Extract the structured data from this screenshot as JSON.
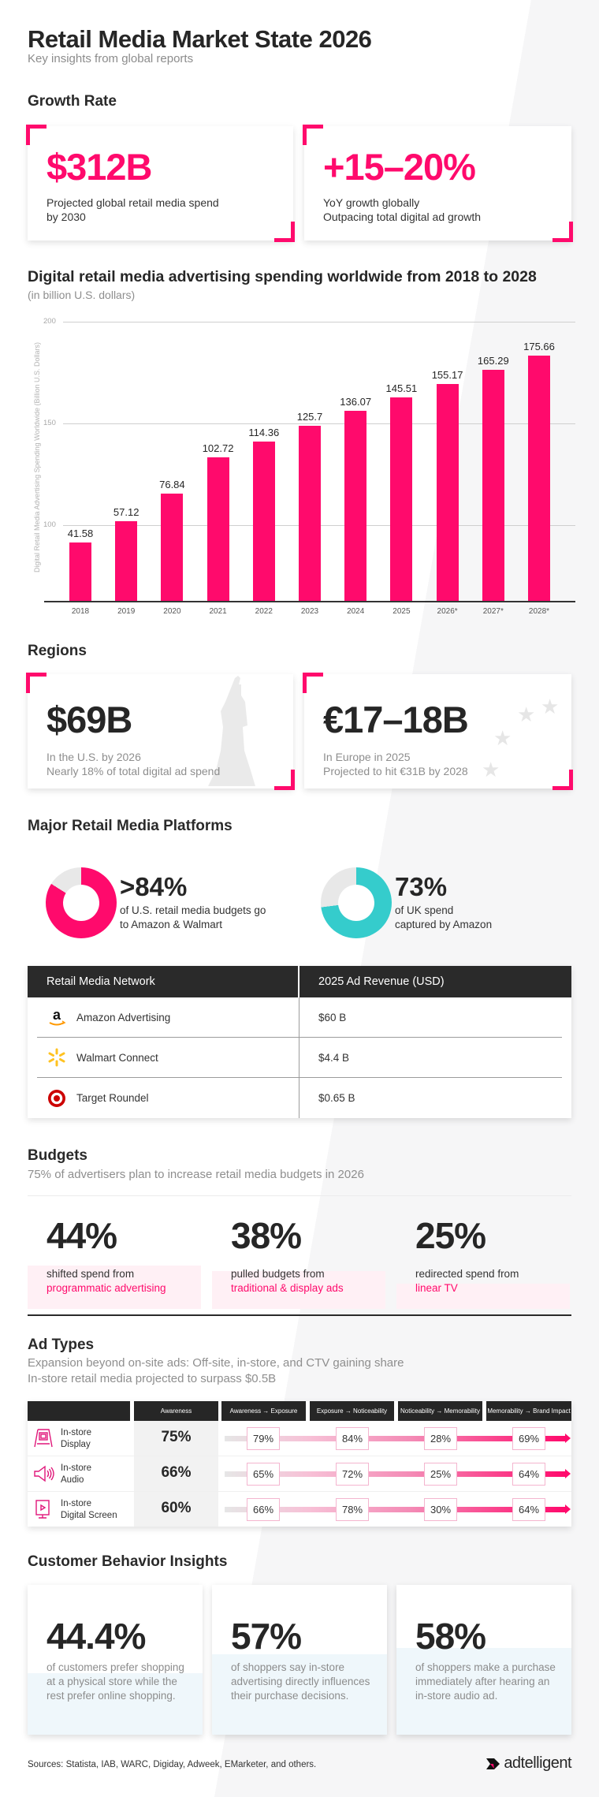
{
  "header": {
    "title": "Retail Media Market State 2026",
    "subtitle": "Key insights from global reports"
  },
  "growth": {
    "heading": "Growth Rate",
    "cards": [
      {
        "value": "$312B",
        "line1": "Projected global retail media spend",
        "line2": "by 2030"
      },
      {
        "value": "+15–20%",
        "line1": "YoY growth globally",
        "line2": "Outpacing total digital ad growth"
      }
    ]
  },
  "chart_data": {
    "type": "bar",
    "title": "Digital retail media advertising spending worldwide from 2018 to 2028",
    "subtitle": "(in billion U.S. dollars)",
    "xlabel": "",
    "ylabel": "Digital Retail Media Advertising Spending Worldwide (Billion U.S. Dollars)",
    "categories": [
      "2018",
      "2019",
      "2020",
      "2021",
      "2022",
      "2023",
      "2024",
      "2025",
      "2026*",
      "2027*",
      "2028*"
    ],
    "values": [
      41.58,
      57.12,
      76.84,
      102.72,
      114.36,
      125.7,
      136.07,
      145.51,
      155.17,
      165.29,
      175.66
    ],
    "value_labels": [
      "41.58",
      "57.12",
      "76.84",
      "102.72",
      "114.36",
      "125.7",
      "136.07",
      "145.51",
      "155.17",
      "165.29",
      "175.66"
    ],
    "yticks": [
      "200",
      "150",
      "100",
      "50"
    ],
    "ylim": [
      0,
      200
    ],
    "grid": true,
    "bar_color": "#ff0a6c"
  },
  "regions": {
    "heading": "Regions",
    "cards": [
      {
        "value": "$69B",
        "line1": "In the U.S. by 2026",
        "line2": "Nearly 18% of total digital ad spend"
      },
      {
        "value": "€17–18B",
        "line1": "In Europe in 2025",
        "line2": "Projected to hit €31B by 2028"
      }
    ]
  },
  "platforms": {
    "heading": "Major Retail Media Platforms",
    "donuts": [
      {
        "value": ">84%",
        "line1": "of U.S. retail media budgets go",
        "line2": "to Amazon & Walmart",
        "percent": 84,
        "color": "#ff0a6c"
      },
      {
        "value": "73%",
        "line1": "of UK spend",
        "line2": "captured by Amazon",
        "percent": 73,
        "color": "#35cccc"
      }
    ],
    "table": {
      "headers": [
        "Retail Media Network",
        "2025 Ad Revenue (USD)"
      ],
      "rows": [
        {
          "network": "Amazon Advertising",
          "revenue": "$60 B",
          "logo": "amazon-logo-icon"
        },
        {
          "network": "Walmart Connect",
          "revenue": "$4.4 B",
          "logo": "walmart-spark-icon"
        },
        {
          "network": "Target Roundel",
          "revenue": "$0.65 B",
          "logo": "target-bullseye-icon"
        }
      ]
    }
  },
  "budgets": {
    "heading": "Budgets",
    "subtitle": "75% of advertisers plan to increase retail media budgets in 2026",
    "items": [
      {
        "value": "44%",
        "line1": "shifted spend from",
        "line2": "programmatic advertising"
      },
      {
        "value": "38%",
        "line1": "pulled budgets from",
        "line2": "traditional & display ads"
      },
      {
        "value": "25%",
        "line1": "redirected spend from",
        "line2": "linear TV"
      }
    ]
  },
  "ad_types": {
    "heading": "Ad Types",
    "subtitle1": "Expansion beyond on-site ads: Off-site, in-store, and CTV gaining share",
    "subtitle2": "In-store retail media projected to surpass $0.5B",
    "columns": [
      "Awareness",
      "Awareness → Exposure",
      "Exposure → Noticeability",
      "Noticeability → Memorability",
      "Memorability → Brand Impact"
    ],
    "rows": [
      {
        "line1": "In-store",
        "line2": "Display",
        "icon": "display-stand-icon",
        "awareness": "75%",
        "steps": [
          "79%",
          "84%",
          "28%",
          "69%"
        ]
      },
      {
        "line1": "In-store",
        "line2": "Audio",
        "icon": "speaker-icon",
        "awareness": "66%",
        "steps": [
          "65%",
          "72%",
          "25%",
          "64%"
        ]
      },
      {
        "line1": "In-store",
        "line2": "Digital Screen",
        "icon": "digital-screen-icon",
        "awareness": "60%",
        "steps": [
          "66%",
          "78%",
          "30%",
          "64%"
        ]
      }
    ]
  },
  "insights": {
    "heading": "Customer Behavior Insights",
    "cards": [
      {
        "value": "44.4%",
        "desc": "of customers prefer shopping at a physical store while the rest prefer online shopping."
      },
      {
        "value": "57%",
        "desc": "of shoppers say in-store advertising directly influences their purchase decisions."
      },
      {
        "value": "58%",
        "desc": "of shoppers make a purchase immediately after hearing an in-store audio ad."
      }
    ]
  },
  "footer": {
    "sources": "Sources: Statista, IAB, WARC, Digiday, Adweek, EMarketer, and others.",
    "brand": "adtelligent"
  },
  "colors": {
    "accent": "#ff0a6c",
    "teal": "#35cccc",
    "dark": "#262626"
  }
}
